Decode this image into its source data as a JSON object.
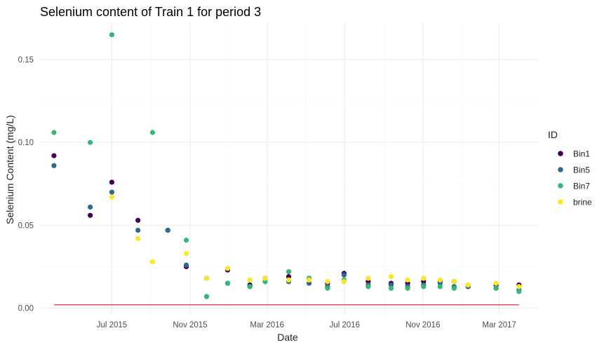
{
  "chart_data": {
    "type": "scatter",
    "title": "Selenium content of Train 1 for period 3",
    "xlabel": "Date",
    "ylabel": "Selenium Content (mg/L)",
    "x_type": "date",
    "xlim": [
      "2015-03-10",
      "2017-05-01"
    ],
    "ylim": [
      -0.004,
      0.172
    ],
    "x_ticks": [
      {
        "date": "2015-07-01",
        "label": "Jul 2015"
      },
      {
        "date": "2015-11-01",
        "label": "Nov 2015"
      },
      {
        "date": "2016-03-01",
        "label": "Mar 2016"
      },
      {
        "date": "2016-07-01",
        "label": "Jul 2016"
      },
      {
        "date": "2016-11-01",
        "label": "Nov 2016"
      },
      {
        "date": "2017-03-01",
        "label": "Mar 2017"
      }
    ],
    "y_ticks": [
      {
        "value": 0.0,
        "label": "0.00"
      },
      {
        "value": 0.05,
        "label": "0.05"
      },
      {
        "value": 0.1,
        "label": "0.10"
      },
      {
        "value": 0.15,
        "label": "0.15"
      }
    ],
    "grid": true,
    "legend": {
      "title": "ID",
      "position": "right"
    },
    "reference_line": {
      "y": 0.002,
      "x_from": "2015-04-01",
      "x_to": "2017-04-01",
      "color": "#cc0000"
    },
    "series": [
      {
        "name": "Bin1",
        "color": "#440154",
        "points": [
          {
            "x": "2015-04-01",
            "y": 0.092
          },
          {
            "x": "2015-05-28",
            "y": 0.056
          },
          {
            "x": "2015-07-01",
            "y": 0.076
          },
          {
            "x": "2015-08-11",
            "y": 0.053
          },
          {
            "x": "2015-09-27",
            "y": 0.047
          },
          {
            "x": "2015-10-26",
            "y": 0.025
          },
          {
            "x": "2015-11-27",
            "y": 0.018
          },
          {
            "x": "2015-12-30",
            "y": 0.023
          },
          {
            "x": "2016-02-03",
            "y": 0.014
          },
          {
            "x": "2016-02-27",
            "y": 0.018
          },
          {
            "x": "2016-04-04",
            "y": 0.019
          },
          {
            "x": "2016-05-06",
            "y": 0.018
          },
          {
            "x": "2016-06-04",
            "y": 0.015
          },
          {
            "x": "2016-06-30",
            "y": 0.021
          },
          {
            "x": "2016-08-07",
            "y": 0.016
          },
          {
            "x": "2016-09-12",
            "y": 0.015
          },
          {
            "x": "2016-10-08",
            "y": 0.015
          },
          {
            "x": "2016-11-02",
            "y": 0.016
          },
          {
            "x": "2016-11-28",
            "y": 0.016
          },
          {
            "x": "2016-12-20",
            "y": 0.016
          },
          {
            "x": "2017-01-11",
            "y": 0.013
          },
          {
            "x": "2017-02-24",
            "y": 0.014
          },
          {
            "x": "2017-04-01",
            "y": 0.014
          }
        ]
      },
      {
        "name": "Bin5",
        "color": "#31688e",
        "points": [
          {
            "x": "2015-04-01",
            "y": 0.086
          },
          {
            "x": "2015-05-28",
            "y": 0.061
          },
          {
            "x": "2015-07-01",
            "y": 0.07
          },
          {
            "x": "2015-08-11",
            "y": 0.047
          },
          {
            "x": "2015-09-27",
            "y": 0.047
          },
          {
            "x": "2015-10-26",
            "y": 0.026
          },
          {
            "x": "2015-11-27",
            "y": 0.007
          },
          {
            "x": "2015-12-30",
            "y": 0.015
          },
          {
            "x": "2016-02-03",
            "y": 0.013
          },
          {
            "x": "2016-02-27",
            "y": 0.016
          },
          {
            "x": "2016-04-04",
            "y": 0.016
          },
          {
            "x": "2016-05-06",
            "y": 0.015
          },
          {
            "x": "2016-06-04",
            "y": 0.013
          },
          {
            "x": "2016-06-30",
            "y": 0.02
          },
          {
            "x": "2016-08-07",
            "y": 0.014
          },
          {
            "x": "2016-09-12",
            "y": 0.014
          },
          {
            "x": "2016-10-08",
            "y": 0.013
          },
          {
            "x": "2016-11-02",
            "y": 0.014
          },
          {
            "x": "2016-11-28",
            "y": 0.015
          },
          {
            "x": "2016-12-20",
            "y": 0.013
          },
          {
            "x": "2017-01-11",
            "y": 0.013
          },
          {
            "x": "2017-02-24",
            "y": 0.012
          },
          {
            "x": "2017-04-01",
            "y": 0.011
          }
        ]
      },
      {
        "name": "Bin7",
        "color": "#35b779",
        "points": [
          {
            "x": "2015-04-01",
            "y": 0.106
          },
          {
            "x": "2015-05-28",
            "y": 0.1
          },
          {
            "x": "2015-07-01",
            "y": 0.165
          },
          {
            "x": "2015-09-03",
            "y": 0.106
          },
          {
            "x": "2015-10-26",
            "y": 0.041
          },
          {
            "x": "2015-11-27",
            "y": 0.007
          },
          {
            "x": "2015-12-30",
            "y": 0.015
          },
          {
            "x": "2016-02-03",
            "y": 0.013
          },
          {
            "x": "2016-02-27",
            "y": 0.016
          },
          {
            "x": "2016-04-04",
            "y": 0.022
          },
          {
            "x": "2016-05-06",
            "y": 0.018
          },
          {
            "x": "2016-06-04",
            "y": 0.012
          },
          {
            "x": "2016-06-30",
            "y": 0.017
          },
          {
            "x": "2016-08-07",
            "y": 0.013
          },
          {
            "x": "2016-09-12",
            "y": 0.012
          },
          {
            "x": "2016-10-08",
            "y": 0.012
          },
          {
            "x": "2016-11-02",
            "y": 0.013
          },
          {
            "x": "2016-11-28",
            "y": 0.013
          },
          {
            "x": "2016-12-20",
            "y": 0.012
          },
          {
            "x": "2017-01-11",
            "y": 0.014
          },
          {
            "x": "2017-02-24",
            "y": 0.012
          },
          {
            "x": "2017-04-01",
            "y": 0.01
          }
        ]
      },
      {
        "name": "brine",
        "color": "#fde725",
        "points": [
          {
            "x": "2015-07-01",
            "y": 0.067
          },
          {
            "x": "2015-08-11",
            "y": 0.042
          },
          {
            "x": "2015-09-03",
            "y": 0.028
          },
          {
            "x": "2015-10-26",
            "y": 0.033
          },
          {
            "x": "2015-11-27",
            "y": 0.018
          },
          {
            "x": "2015-12-30",
            "y": 0.024
          },
          {
            "x": "2016-02-03",
            "y": 0.017
          },
          {
            "x": "2016-02-27",
            "y": 0.018
          },
          {
            "x": "2016-04-04",
            "y": 0.017
          },
          {
            "x": "2016-05-06",
            "y": 0.017
          },
          {
            "x": "2016-06-04",
            "y": 0.016
          },
          {
            "x": "2016-06-30",
            "y": 0.016
          },
          {
            "x": "2016-08-07",
            "y": 0.018
          },
          {
            "x": "2016-09-12",
            "y": 0.019
          },
          {
            "x": "2016-10-08",
            "y": 0.017
          },
          {
            "x": "2016-11-02",
            "y": 0.018
          },
          {
            "x": "2016-11-28",
            "y": 0.017
          },
          {
            "x": "2016-12-20",
            "y": 0.016
          },
          {
            "x": "2017-01-11",
            "y": 0.014
          },
          {
            "x": "2017-02-24",
            "y": 0.015
          },
          {
            "x": "2017-04-01",
            "y": 0.013
          }
        ]
      }
    ]
  }
}
